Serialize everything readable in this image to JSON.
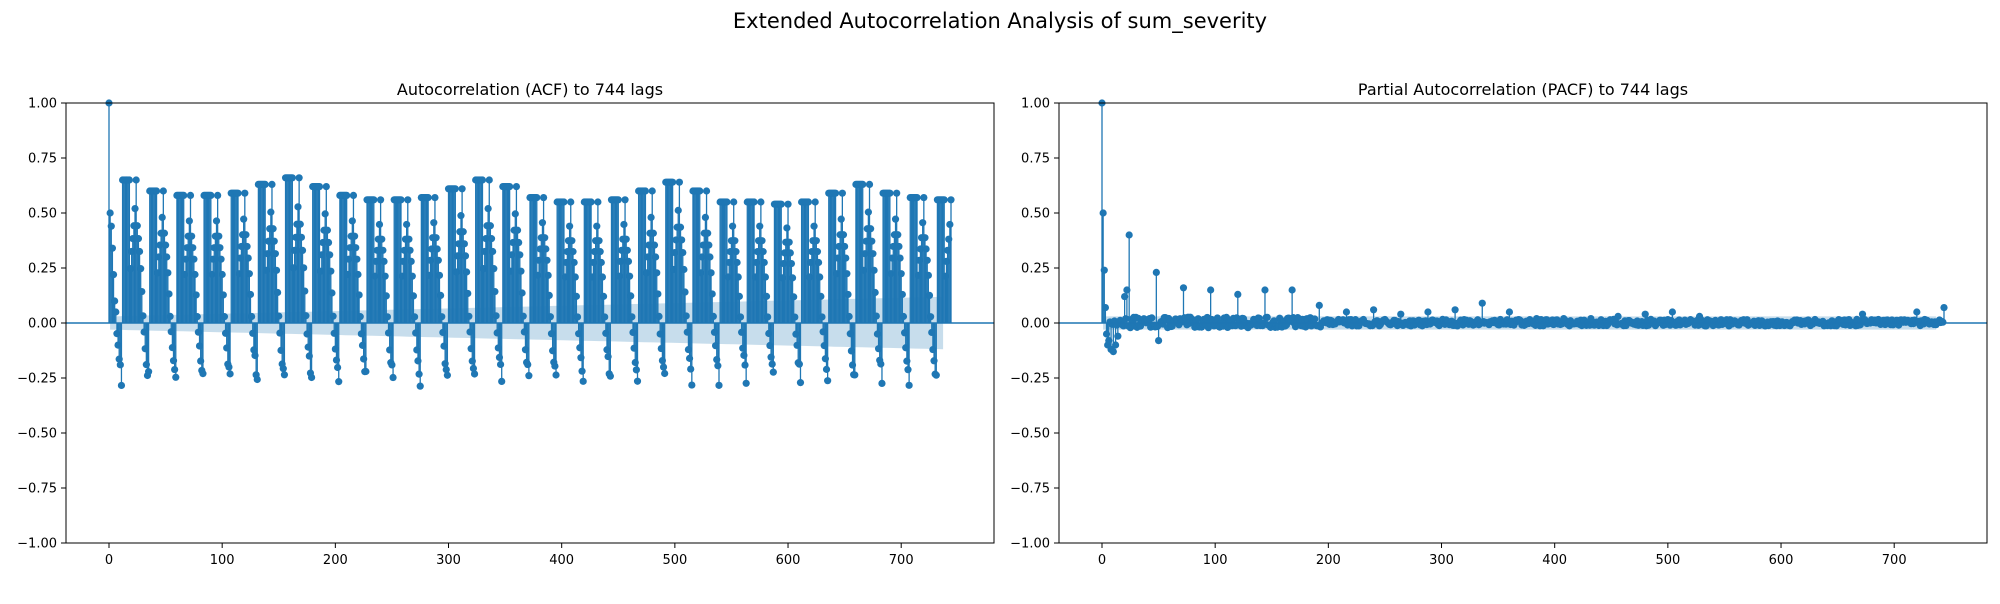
{
  "figure": {
    "title": "Extended Autocorrelation Analysis of sum_severity"
  },
  "colors": {
    "stem": "#1f77b4",
    "confidence_band": "#1f77b4",
    "confidence_band_opacity": 0.25,
    "axes_frame": "#000000"
  },
  "chart_data": [
    {
      "type": "stem",
      "title": "Autocorrelation (ACF) to 744 lags",
      "xlabel": "",
      "ylabel": "",
      "xlim": [
        -38,
        782
      ],
      "ylim": [
        -1.0,
        1.0
      ],
      "xticks": [
        0,
        100,
        200,
        300,
        400,
        500,
        600,
        700
      ],
      "yticks": [
        -1.0,
        -0.75,
        -0.5,
        -0.25,
        0.0,
        0.25,
        0.5,
        0.75,
        1.0
      ],
      "ytick_labels": [
        "−1.00",
        "−0.75",
        "−0.50",
        "−0.25",
        "0.00",
        "0.25",
        "0.50",
        "0.75",
        "1.00"
      ],
      "xtick_labels": [
        "0",
        "100",
        "200",
        "300",
        "400",
        "500",
        "600",
        "700"
      ],
      "grid": false,
      "legend": "none",
      "max_lag": 744,
      "period": 24,
      "peaks": [
        {
          "lag": 0,
          "value": 1.0
        },
        {
          "lag": 24,
          "value": 0.65
        },
        {
          "lag": 48,
          "value": 0.6
        },
        {
          "lag": 72,
          "value": 0.58
        },
        {
          "lag": 96,
          "value": 0.58
        },
        {
          "lag": 120,
          "value": 0.59
        },
        {
          "lag": 144,
          "value": 0.63
        },
        {
          "lag": 168,
          "value": 0.66
        },
        {
          "lag": 192,
          "value": 0.62
        },
        {
          "lag": 216,
          "value": 0.58
        },
        {
          "lag": 240,
          "value": 0.56
        },
        {
          "lag": 264,
          "value": 0.56
        },
        {
          "lag": 288,
          "value": 0.57
        },
        {
          "lag": 312,
          "value": 0.61
        },
        {
          "lag": 336,
          "value": 0.65
        },
        {
          "lag": 360,
          "value": 0.62
        },
        {
          "lag": 384,
          "value": 0.57
        },
        {
          "lag": 408,
          "value": 0.55
        },
        {
          "lag": 432,
          "value": 0.55
        },
        {
          "lag": 456,
          "value": 0.56
        },
        {
          "lag": 480,
          "value": 0.6
        },
        {
          "lag": 504,
          "value": 0.64
        },
        {
          "lag": 528,
          "value": 0.6
        },
        {
          "lag": 552,
          "value": 0.55
        },
        {
          "lag": 576,
          "value": 0.55
        },
        {
          "lag": 600,
          "value": 0.54
        },
        {
          "lag": 624,
          "value": 0.55
        },
        {
          "lag": 648,
          "value": 0.59
        },
        {
          "lag": 672,
          "value": 0.63
        },
        {
          "lag": 696,
          "value": 0.59
        },
        {
          "lag": 720,
          "value": 0.57
        },
        {
          "lag": 744,
          "value": 0.56
        }
      ],
      "first_lags": [
        {
          "lag": 1,
          "value": 0.5
        },
        {
          "lag": 2,
          "value": 0.44
        },
        {
          "lag": 3,
          "value": 0.34
        },
        {
          "lag": 4,
          "value": 0.22
        },
        {
          "lag": 5,
          "value": 0.1
        }
      ],
      "cycle_shape": {
        "offsets": [
          -5,
          -4,
          -3,
          -2,
          -1,
          0,
          1,
          2,
          3,
          4,
          5,
          6,
          7,
          8,
          9,
          10,
          11,
          12
        ],
        "values_relative_to_peak": [
          0.38,
          0.5,
          0.59,
          0.68,
          0.8,
          1.0,
          0.68,
          0.59,
          0.5,
          0.38,
          0.22,
          0.05,
          -0.08,
          -0.2,
          -0.3,
          -0.38,
          -0.45,
          -0.47
        ]
      },
      "trough_range": [
        -0.3,
        -0.23
      ],
      "confidence_band": {
        "start": 0.03,
        "end": 0.12
      }
    },
    {
      "type": "stem",
      "title": "Partial Autocorrelation (PACF) to 744 lags",
      "xlabel": "",
      "ylabel": "",
      "xlim": [
        -38,
        782
      ],
      "ylim": [
        -1.0,
        1.0
      ],
      "xticks": [
        0,
        100,
        200,
        300,
        400,
        500,
        600,
        700
      ],
      "yticks": [
        -1.0,
        -0.75,
        -0.5,
        -0.25,
        0.0,
        0.25,
        0.5,
        0.75,
        1.0
      ],
      "ytick_labels": [
        "−1.00",
        "−0.75",
        "−0.50",
        "−0.25",
        "0.00",
        "0.25",
        "0.50",
        "0.75",
        "1.00"
      ],
      "xtick_labels": [
        "0",
        "100",
        "200",
        "300",
        "400",
        "500",
        "600",
        "700"
      ],
      "grid": false,
      "legend": "none",
      "max_lag": 744,
      "notable_lags": [
        {
          "lag": 0,
          "value": 1.0
        },
        {
          "lag": 1,
          "value": 0.5
        },
        {
          "lag": 2,
          "value": 0.24
        },
        {
          "lag": 3,
          "value": 0.07
        },
        {
          "lag": 4,
          "value": -0.05
        },
        {
          "lag": 5,
          "value": -0.1
        },
        {
          "lag": 6,
          "value": -0.08
        },
        {
          "lag": 8,
          "value": -0.12
        },
        {
          "lag": 10,
          "value": -0.13
        },
        {
          "lag": 12,
          "value": -0.1
        },
        {
          "lag": 14,
          "value": -0.06
        },
        {
          "lag": 20,
          "value": 0.12
        },
        {
          "lag": 22,
          "value": 0.15
        },
        {
          "lag": 24,
          "value": 0.4
        },
        {
          "lag": 48,
          "value": 0.23
        },
        {
          "lag": 50,
          "value": -0.08
        },
        {
          "lag": 72,
          "value": 0.16
        },
        {
          "lag": 96,
          "value": 0.15
        },
        {
          "lag": 120,
          "value": 0.13
        },
        {
          "lag": 144,
          "value": 0.15
        },
        {
          "lag": 168,
          "value": 0.15
        },
        {
          "lag": 192,
          "value": 0.08
        },
        {
          "lag": 216,
          "value": 0.05
        },
        {
          "lag": 240,
          "value": 0.06
        },
        {
          "lag": 264,
          "value": 0.04
        },
        {
          "lag": 288,
          "value": 0.05
        },
        {
          "lag": 312,
          "value": 0.06
        },
        {
          "lag": 336,
          "value": 0.09
        },
        {
          "lag": 360,
          "value": 0.05
        },
        {
          "lag": 384,
          "value": 0.02
        },
        {
          "lag": 408,
          "value": 0.02
        },
        {
          "lag": 432,
          "value": 0.02
        },
        {
          "lag": 456,
          "value": 0.03
        },
        {
          "lag": 480,
          "value": 0.04
        },
        {
          "lag": 504,
          "value": 0.05
        },
        {
          "lag": 528,
          "value": 0.03
        },
        {
          "lag": 672,
          "value": 0.04
        },
        {
          "lag": 720,
          "value": 0.05
        },
        {
          "lag": 744,
          "value": 0.07
        }
      ],
      "noise_amplitude": 0.015,
      "confidence_band": {
        "start": 0.03,
        "end": 0.03
      }
    }
  ]
}
